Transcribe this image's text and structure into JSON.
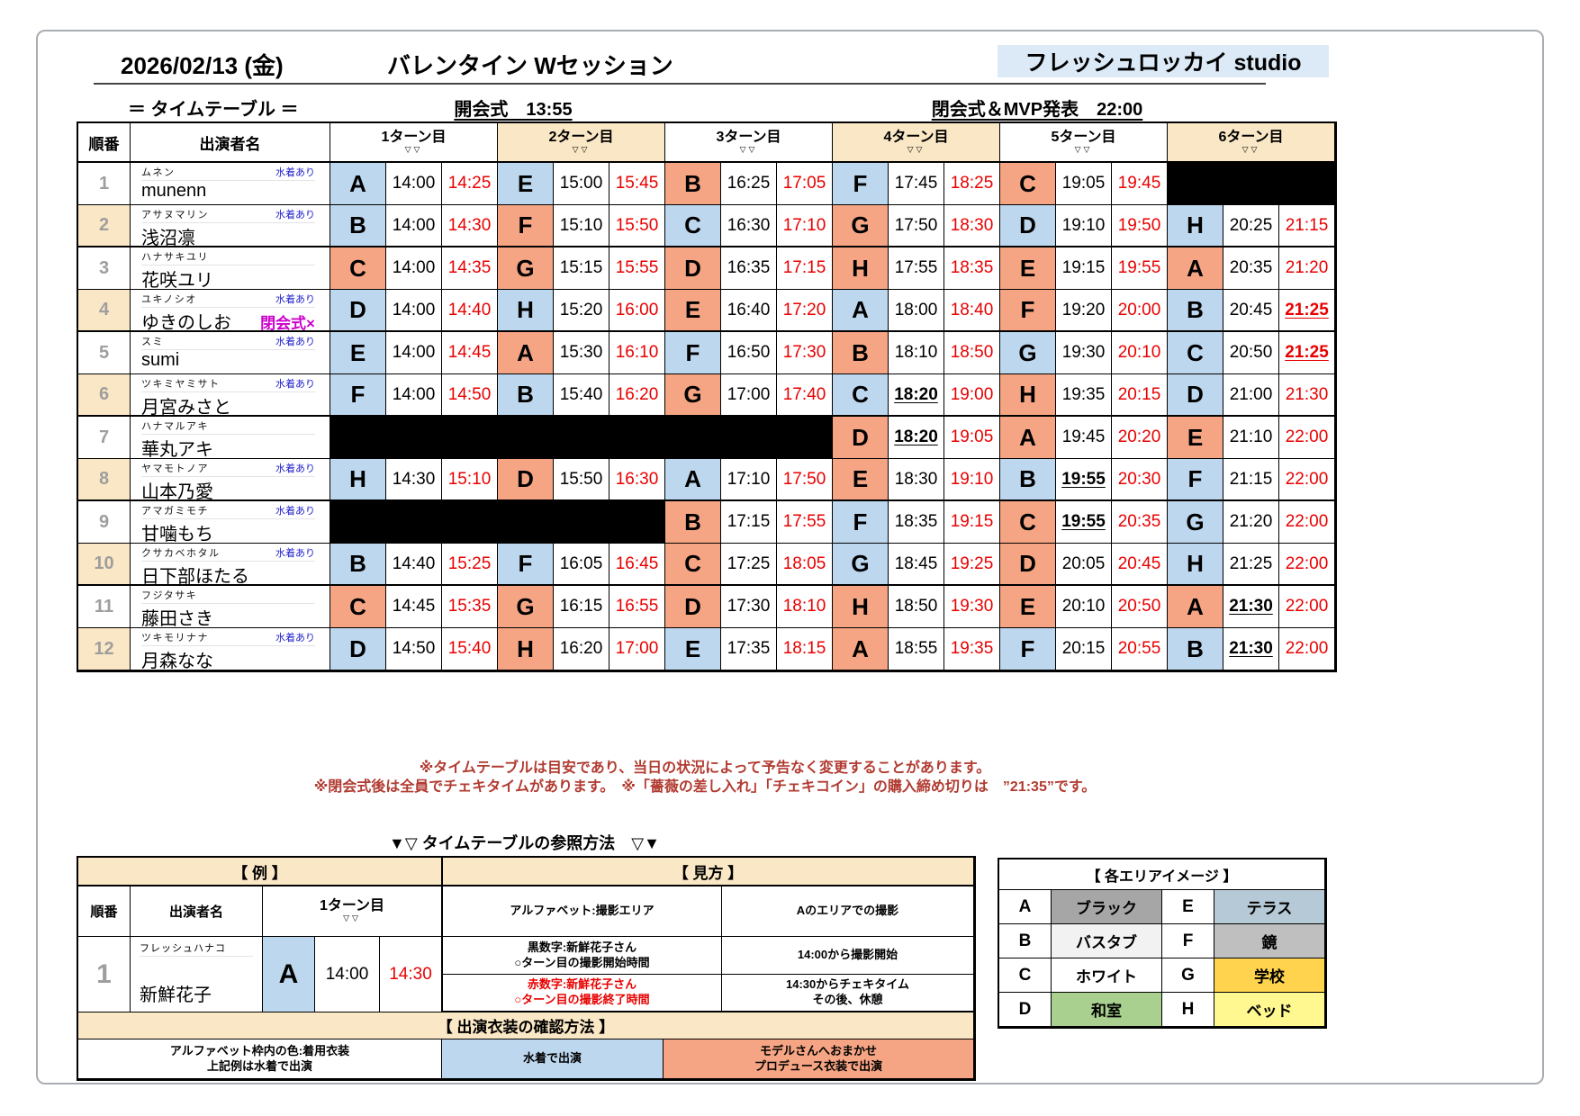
{
  "header": {
    "date": "2026/02/13 (金)",
    "title": "バレンタイン Wセッション",
    "studio": "フレッシュロッカイ studio"
  },
  "subheader": {
    "label": "＝ タイムテーブル ＝",
    "opening": "開会式　13:55",
    "closing": "閉会式＆MVP発表　22:00"
  },
  "timetable": {
    "order_header": "順番",
    "name_header": "出演者名",
    "turn_headers": [
      "1ターン目",
      "2ターン目",
      "3ターン目",
      "4ターン目",
      "5ターン目",
      "6ターン目"
    ],
    "turn_marker": "▽▽",
    "swim_label": "水着あり",
    "colors": {
      "swim_cell": "#BDD7EE",
      "produce_cell": "#F5A583",
      "tan": "#FAE7C5",
      "end_time": "#e80000"
    },
    "rows": [
      {
        "no": "1",
        "kana": "ムネン",
        "swim": true,
        "name": "munenn",
        "note": "",
        "turns": [
          {
            "area": "A",
            "outfit": "swim",
            "start": "14:00",
            "end": "14:25"
          },
          {
            "area": "E",
            "outfit": "swim",
            "start": "15:00",
            "end": "15:45"
          },
          {
            "area": "B",
            "outfit": "produce",
            "start": "16:25",
            "end": "17:05"
          },
          {
            "area": "F",
            "outfit": "swim",
            "start": "17:45",
            "end": "18:25"
          },
          {
            "area": "C",
            "outfit": "produce",
            "start": "19:05",
            "end": "19:45"
          },
          {
            "black": true
          }
        ]
      },
      {
        "no": "2",
        "kana": "アサヌマリン",
        "swim": true,
        "name": "浅沼凛",
        "note": "",
        "turns": [
          {
            "area": "B",
            "outfit": "swim",
            "start": "14:00",
            "end": "14:30"
          },
          {
            "area": "F",
            "outfit": "produce",
            "start": "15:10",
            "end": "15:50"
          },
          {
            "area": "C",
            "outfit": "swim",
            "start": "16:30",
            "end": "17:10"
          },
          {
            "area": "G",
            "outfit": "produce",
            "start": "17:50",
            "end": "18:30"
          },
          {
            "area": "D",
            "outfit": "swim",
            "start": "19:10",
            "end": "19:50"
          },
          {
            "area": "H",
            "outfit": "swim",
            "start": "20:25",
            "end": "21:15"
          }
        ]
      },
      {
        "no": "3",
        "kana": "ハナサキユリ",
        "swim": false,
        "name": "花咲ユリ",
        "note": "",
        "turns": [
          {
            "area": "C",
            "outfit": "produce",
            "start": "14:00",
            "end": "14:35"
          },
          {
            "area": "G",
            "outfit": "produce",
            "start": "15:15",
            "end": "15:55"
          },
          {
            "area": "D",
            "outfit": "produce",
            "start": "16:35",
            "end": "17:15"
          },
          {
            "area": "H",
            "outfit": "produce",
            "start": "17:55",
            "end": "18:35"
          },
          {
            "area": "E",
            "outfit": "produce",
            "start": "19:15",
            "end": "19:55"
          },
          {
            "area": "A",
            "outfit": "produce",
            "start": "20:35",
            "end": "21:20"
          }
        ]
      },
      {
        "no": "4",
        "kana": "ユキノシオ",
        "swim": true,
        "name": "ゆきのしお",
        "note": "閉会式×",
        "turns": [
          {
            "area": "D",
            "outfit": "swim",
            "start": "14:00",
            "end": "14:40"
          },
          {
            "area": "H",
            "outfit": "swim",
            "start": "15:20",
            "end": "16:00"
          },
          {
            "area": "E",
            "outfit": "produce",
            "start": "16:40",
            "end": "17:20"
          },
          {
            "area": "A",
            "outfit": "swim",
            "start": "18:00",
            "end": "18:40"
          },
          {
            "area": "F",
            "outfit": "produce",
            "start": "19:20",
            "end": "20:00"
          },
          {
            "area": "B",
            "outfit": "swim",
            "start": "20:45",
            "end": "21:25",
            "endEm": true
          }
        ]
      },
      {
        "no": "5",
        "kana": "スミ",
        "swim": true,
        "name": "sumi",
        "note": "",
        "turns": [
          {
            "area": "E",
            "outfit": "swim",
            "start": "14:00",
            "end": "14:45"
          },
          {
            "area": "A",
            "outfit": "produce",
            "start": "15:30",
            "end": "16:10"
          },
          {
            "area": "F",
            "outfit": "swim",
            "start": "16:50",
            "end": "17:30"
          },
          {
            "area": "B",
            "outfit": "produce",
            "start": "18:10",
            "end": "18:50"
          },
          {
            "area": "G",
            "outfit": "swim",
            "start": "19:30",
            "end": "20:10"
          },
          {
            "area": "C",
            "outfit": "swim",
            "start": "20:50",
            "end": "21:25",
            "endEm": true
          }
        ]
      },
      {
        "no": "6",
        "kana": "ツキミヤミサト",
        "swim": true,
        "name": "月宮みさと",
        "note": "",
        "turns": [
          {
            "area": "F",
            "outfit": "swim",
            "start": "14:00",
            "end": "14:50"
          },
          {
            "area": "B",
            "outfit": "swim",
            "start": "15:40",
            "end": "16:20"
          },
          {
            "area": "G",
            "outfit": "produce",
            "start": "17:00",
            "end": "17:40"
          },
          {
            "area": "C",
            "outfit": "swim",
            "start": "18:20",
            "end": "19:00",
            "startEm": true
          },
          {
            "area": "H",
            "outfit": "produce",
            "start": "19:35",
            "end": "20:15"
          },
          {
            "area": "D",
            "outfit": "swim",
            "start": "21:00",
            "end": "21:30"
          }
        ]
      },
      {
        "no": "7",
        "kana": "ハナマルアキ",
        "swim": false,
        "name": "華丸アキ",
        "note": "",
        "turns": [
          {
            "black": true
          },
          {
            "black": true
          },
          {
            "black": true
          },
          {
            "area": "D",
            "outfit": "produce",
            "start": "18:20",
            "end": "19:05",
            "startEm": true
          },
          {
            "area": "A",
            "outfit": "produce",
            "start": "19:45",
            "end": "20:20"
          },
          {
            "area": "E",
            "outfit": "produce",
            "start": "21:10",
            "end": "22:00"
          }
        ]
      },
      {
        "no": "8",
        "kana": "ヤマモトノア",
        "swim": true,
        "name": "山本乃愛",
        "note": "",
        "turns": [
          {
            "area": "H",
            "outfit": "swim",
            "start": "14:30",
            "end": "15:10"
          },
          {
            "area": "D",
            "outfit": "produce",
            "start": "15:50",
            "end": "16:30"
          },
          {
            "area": "A",
            "outfit": "swim",
            "start": "17:10",
            "end": "17:50"
          },
          {
            "area": "E",
            "outfit": "produce",
            "start": "18:30",
            "end": "19:10"
          },
          {
            "area": "B",
            "outfit": "swim",
            "start": "19:55",
            "end": "20:30",
            "startEm": true
          },
          {
            "area": "F",
            "outfit": "swim",
            "start": "21:15",
            "end": "22:00"
          }
        ]
      },
      {
        "no": "9",
        "kana": "アマガミモチ",
        "swim": true,
        "name": "甘噛もち",
        "note": "",
        "turns": [
          {
            "black": true
          },
          {
            "black": true
          },
          {
            "area": "B",
            "outfit": "produce",
            "start": "17:15",
            "end": "17:55"
          },
          {
            "area": "F",
            "outfit": "swim",
            "start": "18:35",
            "end": "19:15"
          },
          {
            "area": "C",
            "outfit": "produce",
            "start": "19:55",
            "end": "20:35",
            "startEm": true
          },
          {
            "area": "G",
            "outfit": "swim",
            "start": "21:20",
            "end": "22:00"
          }
        ]
      },
      {
        "no": "10",
        "kana": "クサカベホタル",
        "swim": true,
        "name": "日下部ほたる",
        "note": "",
        "turns": [
          {
            "area": "B",
            "outfit": "swim",
            "start": "14:40",
            "end": "15:25"
          },
          {
            "area": "F",
            "outfit": "swim",
            "start": "16:05",
            "end": "16:45"
          },
          {
            "area": "C",
            "outfit": "produce",
            "start": "17:25",
            "end": "18:05"
          },
          {
            "area": "G",
            "outfit": "swim",
            "start": "18:45",
            "end": "19:25"
          },
          {
            "area": "D",
            "outfit": "produce",
            "start": "20:05",
            "end": "20:45"
          },
          {
            "area": "H",
            "outfit": "swim",
            "start": "21:25",
            "end": "22:00"
          }
        ]
      },
      {
        "no": "11",
        "kana": "フジタサキ",
        "swim": false,
        "name": "藤田さき",
        "note": "",
        "turns": [
          {
            "area": "C",
            "outfit": "produce",
            "start": "14:45",
            "end": "15:35"
          },
          {
            "area": "G",
            "outfit": "produce",
            "start": "16:15",
            "end": "16:55"
          },
          {
            "area": "D",
            "outfit": "produce",
            "start": "17:30",
            "end": "18:10"
          },
          {
            "area": "H",
            "outfit": "produce",
            "start": "18:50",
            "end": "19:30"
          },
          {
            "area": "E",
            "outfit": "produce",
            "start": "20:10",
            "end": "20:50"
          },
          {
            "area": "A",
            "outfit": "produce",
            "start": "21:30",
            "end": "22:00",
            "startEm": true
          }
        ]
      },
      {
        "no": "12",
        "kana": "ツキモリナナ",
        "swim": true,
        "name": "月森なな",
        "note": "",
        "turns": [
          {
            "area": "D",
            "outfit": "swim",
            "start": "14:50",
            "end": "15:40"
          },
          {
            "area": "H",
            "outfit": "produce",
            "start": "16:20",
            "end": "17:00"
          },
          {
            "area": "E",
            "outfit": "swim",
            "start": "17:35",
            "end": "18:15"
          },
          {
            "area": "A",
            "outfit": "produce",
            "start": "18:55",
            "end": "19:35"
          },
          {
            "area": "F",
            "outfit": "swim",
            "start": "20:15",
            "end": "20:55"
          },
          {
            "area": "B",
            "outfit": "swim",
            "start": "21:30",
            "end": "22:00",
            "startEm": true
          }
        ]
      }
    ]
  },
  "notes": [
    "※タイムテーブルは目安であり、当日の状況によって予告なく変更することがあります。",
    "※閉会式後は全員でチェキタイムがあります。　※「薔薇の差し入れ」「チェキコイン」の購入締め切りは　”21:35”です。"
  ],
  "guide": {
    "heading": "▼▽ タイムテーブルの参照方法　▽▼",
    "example_title": "【 例 】",
    "view_title": "【 見方 】",
    "order_header": "順番",
    "name_header": "出演者名",
    "turn_header": "1ターン目",
    "turn_marker": "▽▽",
    "example_no": "1",
    "example_kana": "フレッシュハナコ",
    "example_name": "新鮮花子",
    "example_area": "A",
    "example_start": "14:00",
    "example_end": "14:30",
    "row_alphabet_desc": "アルファベット:撮影エリア",
    "row_alphabet_meaning": "Aのエリアでの撮影",
    "row_black_desc": "黒数字:新鮮花子さん\n○ターン目の撮影開始時間",
    "row_black_meaning": "14:00から撮影開始",
    "row_red_desc": "赤数字:新鮮花子さん\n○ターン目の撮影終了時間",
    "row_red_meaning": "14:30からチェキタイム\nその後、休憩",
    "costume_title": "【 出演衣装の確認方法 】",
    "costume_left": "アルファベット枠内の色:着用衣装\n上記例は水着で出演",
    "costume_swim": "水着で出演",
    "costume_produce": "モデルさんへおまかせ\nプロデュース衣装で出演"
  },
  "areas": {
    "title": "【 各エリアイメージ 】",
    "items": [
      {
        "code": "A",
        "label": "ブラック",
        "color": "#A6A6A6"
      },
      {
        "code": "B",
        "label": "バスタブ",
        "color": "#F2F2F2"
      },
      {
        "code": "C",
        "label": "ホワイト",
        "color": "#FFFFFF"
      },
      {
        "code": "D",
        "label": "和室",
        "color": "#A9D08E"
      },
      {
        "code": "E",
        "label": "テラス",
        "color": "#B6C9D6"
      },
      {
        "code": "F",
        "label": "鏡",
        "color": "#BFBFBF"
      },
      {
        "code": "G",
        "label": "学校",
        "color": "#FFD34D"
      },
      {
        "code": "H",
        "label": "ベッド",
        "color": "#FFF78F"
      }
    ]
  }
}
